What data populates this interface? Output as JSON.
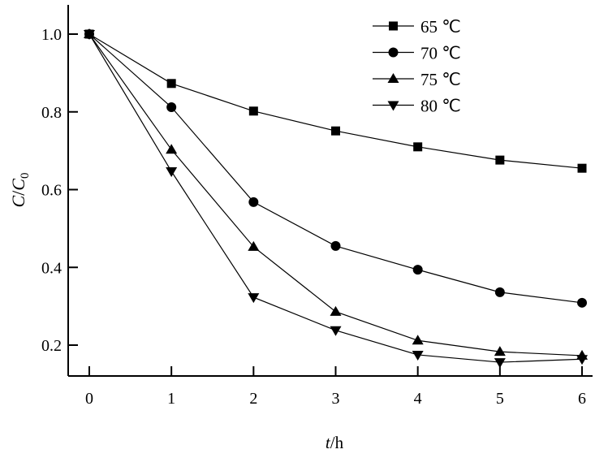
{
  "chart_data": {
    "type": "line",
    "title": "",
    "xlabel": "t/h",
    "ylabel": "C/C0",
    "xlim": [
      -0.25,
      6.1
    ],
    "ylim": [
      0.07,
      1.075
    ],
    "x_ticks": [
      "0",
      "1",
      "2",
      "3",
      "4",
      "5",
      "6"
    ],
    "y_ticks": [
      "0.2",
      "0.4",
      "0.6",
      "0.8",
      "1.0"
    ],
    "grid": false,
    "legend_position": "top-right",
    "x": [
      0,
      1,
      2,
      3,
      4,
      5,
      6
    ],
    "series": [
      {
        "name": "65 ℃",
        "marker": "square",
        "values": [
          1.0,
          0.873,
          0.802,
          0.751,
          0.71,
          0.676,
          0.655
        ]
      },
      {
        "name": "70 ℃",
        "marker": "circle",
        "values": [
          1.0,
          0.812,
          0.568,
          0.455,
          0.394,
          0.336,
          0.309
        ]
      },
      {
        "name": "75 ℃",
        "marker": "triangle-up",
        "values": [
          1.0,
          0.703,
          0.453,
          0.286,
          0.212,
          0.183,
          0.173
        ]
      },
      {
        "name": "80 ℃",
        "marker": "triangle-down",
        "values": [
          1.0,
          0.647,
          0.323,
          0.238,
          0.175,
          0.156,
          0.164
        ]
      }
    ],
    "color": "#000000"
  }
}
